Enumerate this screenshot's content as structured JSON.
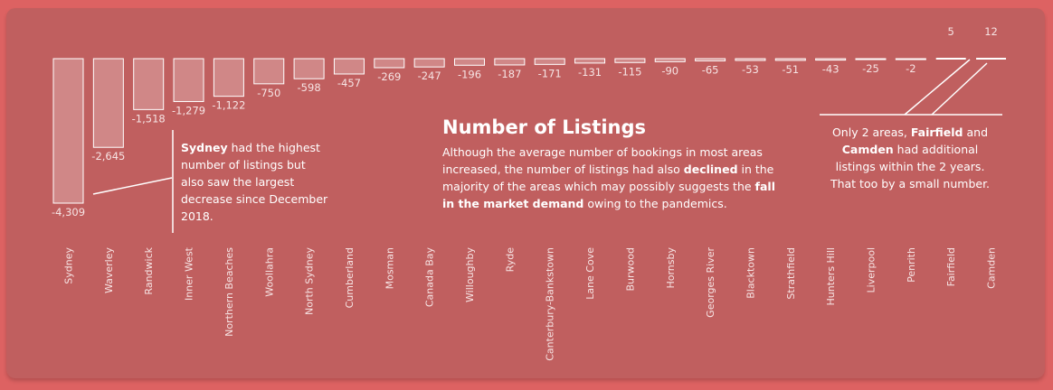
{
  "chart_data": {
    "type": "bar",
    "title": "Number of Listings",
    "categories": [
      "Sydney",
      "Waverley",
      "Randwick",
      "Inner West",
      "Northern Beaches",
      "Woollahra",
      "North Sydney",
      "Cumberland",
      "Mosman",
      "Canada Bay",
      "Willoughby",
      "Ryde",
      "Canterbury-Bankstown",
      "Lane Cove",
      "Burwood",
      "Hornsby",
      "Georges River",
      "Blacktown",
      "Strathfield",
      "Hunters Hill",
      "Liverpool",
      "Penrith",
      "Fairfield",
      "Camden"
    ],
    "values": [
      -4309,
      -2645,
      -1518,
      -1279,
      -1122,
      -750,
      -598,
      -457,
      -269,
      -247,
      -196,
      -187,
      -171,
      -131,
      -115,
      -90,
      -65,
      -53,
      -51,
      -43,
      -25,
      -2,
      5,
      12
    ],
    "value_labels": [
      "-4,309",
      "-2,645",
      "-1,518",
      "-1,279",
      "-1,122",
      "-750",
      "-598",
      "-457",
      "-269",
      "-247",
      "-196",
      "-187",
      "-171",
      "-131",
      "-115",
      "-90",
      "-65",
      "-53",
      "-51",
      "-43",
      "-25",
      "-2",
      "5",
      "12"
    ],
    "colors": {
      "background": "#dd6262",
      "panel": "#c05f5f",
      "bar_fill": "rgba(255,255,255,0.25)",
      "bar_stroke": "#ffffff",
      "text": "#ffffff"
    }
  },
  "annotations": {
    "description_parts": [
      {
        "text": "Although the average number of bookings in most areas increased, the number of listings had also ",
        "bold": false
      },
      {
        "text": "declined",
        "bold": true
      },
      {
        "text": " in the majority of the areas which may possibly suggests the ",
        "bold": false
      },
      {
        "text": "fall in the market demand",
        "bold": true
      },
      {
        "text": " owing to the pandemics.",
        "bold": false
      }
    ],
    "sydney_note": {
      "bold": "Sydney",
      "rest": " had the highest number of listings but also saw the largest decrease since December 2018."
    },
    "right_note": {
      "part1": "Only 2 areas, ",
      "fairfield": "Fairfield",
      "part2": " and ",
      "camden": "Camden",
      "part3": " had additional listings within the 2 years. That too by a small number."
    }
  }
}
